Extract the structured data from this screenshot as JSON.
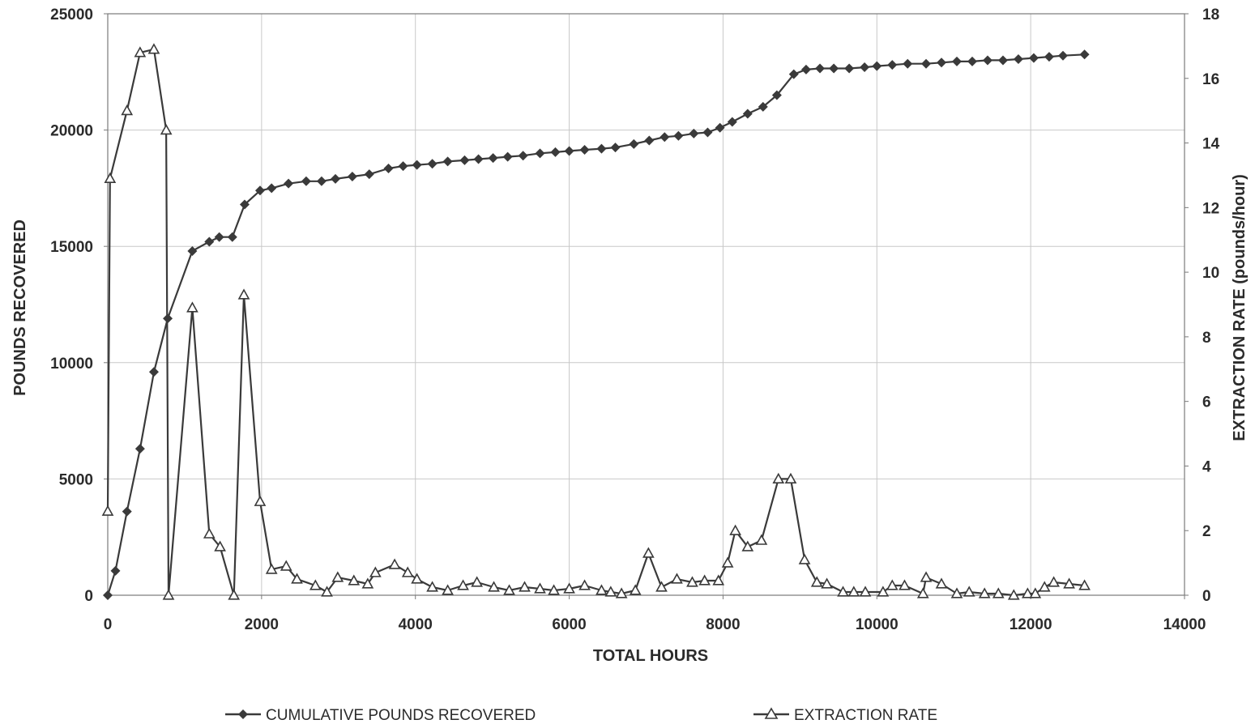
{
  "chart_data": {
    "type": "line",
    "title": "",
    "xlabel": "TOTAL HOURS",
    "ylabel": "POUNDS RECOVERED",
    "y2label": "EXTRACTION RATE (pounds/hour)",
    "xlim": [
      0,
      14000
    ],
    "ylim": [
      0,
      25000
    ],
    "y2lim": [
      0,
      18
    ],
    "x_ticks": [
      "0",
      "2000",
      "4000",
      "6000",
      "8000",
      "10000",
      "12000",
      "14000"
    ],
    "y_ticks": [
      "0",
      "5000",
      "10000",
      "15000",
      "20000",
      "25000"
    ],
    "y2_ticks": [
      "0",
      "2",
      "4",
      "6",
      "8",
      "10",
      "12",
      "14",
      "16",
      "18"
    ],
    "grid": true,
    "legend_position": "bottom",
    "series": [
      {
        "name": "CUMULATIVE POUNDS RECOVERED",
        "axis": "left",
        "marker": "diamond",
        "color": "#3a3a3a",
        "points": [
          [
            0,
            0
          ],
          [
            100,
            1050
          ],
          [
            250,
            3600
          ],
          [
            420,
            6300
          ],
          [
            600,
            9600
          ],
          [
            780,
            11900
          ],
          [
            1100,
            14800
          ],
          [
            1320,
            15200
          ],
          [
            1450,
            15400
          ],
          [
            1620,
            15400
          ],
          [
            1780,
            16800
          ],
          [
            1980,
            17400
          ],
          [
            2130,
            17500
          ],
          [
            2350,
            17700
          ],
          [
            2580,
            17800
          ],
          [
            2780,
            17800
          ],
          [
            2960,
            17900
          ],
          [
            3180,
            18000
          ],
          [
            3400,
            18100
          ],
          [
            3650,
            18350
          ],
          [
            3840,
            18450
          ],
          [
            4020,
            18500
          ],
          [
            4220,
            18550
          ],
          [
            4420,
            18650
          ],
          [
            4640,
            18700
          ],
          [
            4820,
            18750
          ],
          [
            5010,
            18800
          ],
          [
            5200,
            18850
          ],
          [
            5400,
            18900
          ],
          [
            5620,
            19000
          ],
          [
            5820,
            19050
          ],
          [
            6000,
            19100
          ],
          [
            6200,
            19150
          ],
          [
            6420,
            19200
          ],
          [
            6600,
            19250
          ],
          [
            6840,
            19400
          ],
          [
            7040,
            19550
          ],
          [
            7240,
            19700
          ],
          [
            7420,
            19750
          ],
          [
            7620,
            19850
          ],
          [
            7800,
            19900
          ],
          [
            7960,
            20100
          ],
          [
            8120,
            20350
          ],
          [
            8320,
            20700
          ],
          [
            8520,
            21000
          ],
          [
            8700,
            21500
          ],
          [
            8920,
            22400
          ],
          [
            9080,
            22600
          ],
          [
            9260,
            22650
          ],
          [
            9440,
            22650
          ],
          [
            9640,
            22650
          ],
          [
            9840,
            22700
          ],
          [
            10000,
            22750
          ],
          [
            10200,
            22800
          ],
          [
            10400,
            22850
          ],
          [
            10640,
            22850
          ],
          [
            10840,
            22900
          ],
          [
            11040,
            22950
          ],
          [
            11240,
            22950
          ],
          [
            11440,
            23000
          ],
          [
            11640,
            23000
          ],
          [
            11840,
            23050
          ],
          [
            12040,
            23100
          ],
          [
            12240,
            23150
          ],
          [
            12420,
            23200
          ],
          [
            12700,
            23250
          ]
        ]
      },
      {
        "name": "EXTRACTION RATE",
        "axis": "right",
        "marker": "triangle",
        "color": "#3a3a3a",
        "points": [
          [
            0,
            2.6
          ],
          [
            30,
            12.9
          ],
          [
            250,
            15.0
          ],
          [
            420,
            16.8
          ],
          [
            600,
            16.9
          ],
          [
            760,
            14.4
          ],
          [
            790,
            0
          ],
          [
            1100,
            8.9
          ],
          [
            1320,
            1.9
          ],
          [
            1460,
            1.5
          ],
          [
            1640,
            0
          ],
          [
            1770,
            9.3
          ],
          [
            1980,
            2.9
          ],
          [
            2130,
            0.8
          ],
          [
            2320,
            0.9
          ],
          [
            2460,
            0.5
          ],
          [
            2700,
            0.3
          ],
          [
            2850,
            0.1
          ],
          [
            2990,
            0.55
          ],
          [
            3200,
            0.45
          ],
          [
            3380,
            0.35
          ],
          [
            3480,
            0.7
          ],
          [
            3730,
            0.95
          ],
          [
            3900,
            0.7
          ],
          [
            4020,
            0.5
          ],
          [
            4220,
            0.25
          ],
          [
            4420,
            0.15
          ],
          [
            4620,
            0.3
          ],
          [
            4800,
            0.4
          ],
          [
            5020,
            0.25
          ],
          [
            5220,
            0.15
          ],
          [
            5420,
            0.25
          ],
          [
            5620,
            0.2
          ],
          [
            5800,
            0.15
          ],
          [
            6000,
            0.2
          ],
          [
            6200,
            0.3
          ],
          [
            6420,
            0.15
          ],
          [
            6540,
            0.1
          ],
          [
            6680,
            0.05
          ],
          [
            6860,
            0.15
          ],
          [
            7030,
            1.3
          ],
          [
            7200,
            0.25
          ],
          [
            7400,
            0.5
          ],
          [
            7600,
            0.4
          ],
          [
            7760,
            0.45
          ],
          [
            7940,
            0.45
          ],
          [
            8060,
            1.0
          ],
          [
            8160,
            2.0
          ],
          [
            8320,
            1.5
          ],
          [
            8500,
            1.7
          ],
          [
            8720,
            3.6
          ],
          [
            8880,
            3.6
          ],
          [
            9060,
            1.1
          ],
          [
            9220,
            0.4
          ],
          [
            9350,
            0.35
          ],
          [
            9560,
            0.1
          ],
          [
            9700,
            0.1
          ],
          [
            9850,
            0.1
          ],
          [
            10080,
            0.1
          ],
          [
            10200,
            0.3
          ],
          [
            10360,
            0.3
          ],
          [
            10600,
            0.05
          ],
          [
            10640,
            0.55
          ],
          [
            10840,
            0.35
          ],
          [
            11040,
            0.05
          ],
          [
            11200,
            0.1
          ],
          [
            11400,
            0.05
          ],
          [
            11580,
            0.05
          ],
          [
            11780,
            0.0
          ],
          [
            11960,
            0.05
          ],
          [
            12060,
            0.05
          ],
          [
            12180,
            0.25
          ],
          [
            12300,
            0.4
          ],
          [
            12500,
            0.35
          ],
          [
            12700,
            0.3
          ]
        ]
      }
    ]
  }
}
